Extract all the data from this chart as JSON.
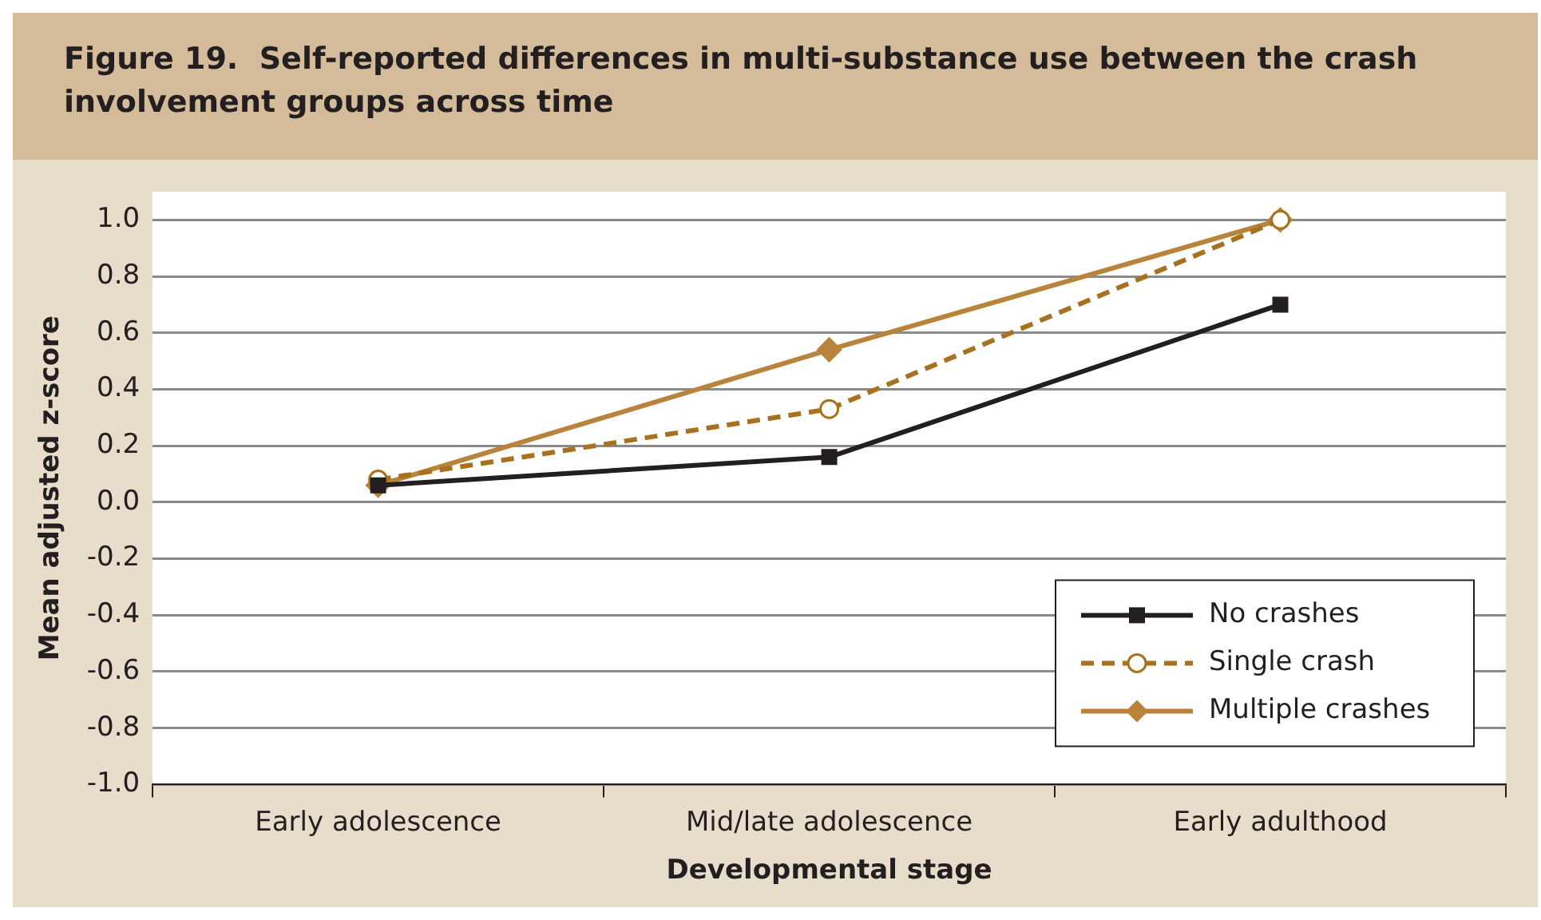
{
  "chart_data": {
    "type": "line",
    "title": "Figure 19.  Self-reported differences in multi-substance use between the crash involvement groups across time",
    "xlabel": "Developmental stage",
    "ylabel": "Mean adjusted z-score",
    "categories": [
      "Early adolescence",
      "Mid/late adolescence",
      "Early adulthood"
    ],
    "series": [
      {
        "name": "No crashes",
        "color": "#231f20",
        "values": [
          0.06,
          0.16,
          0.7
        ],
        "marker": "square",
        "line_style": "solid"
      },
      {
        "name": "Single crash",
        "color": "#a8711f",
        "values": [
          0.08,
          0.33,
          1.0
        ],
        "marker": "circle",
        "line_style": "dashed"
      },
      {
        "name": "Multiple crashes",
        "color": "#b8843c",
        "values": [
          0.06,
          0.54,
          1.0
        ],
        "marker": "diamond",
        "line_style": "solid"
      }
    ],
    "ylim": [
      -1,
      1.1
    ],
    "yticks": [
      {
        "value": -1,
        "label": "-1.0"
      },
      {
        "value": -0.8,
        "label": "-0.8"
      },
      {
        "value": -0.6,
        "label": "-0.6"
      },
      {
        "value": -0.4,
        "label": "-0.4"
      },
      {
        "value": -0.2,
        "label": "-0.2"
      },
      {
        "value": 0,
        "label": "0.0"
      },
      {
        "value": 0.2,
        "label": "0.2"
      },
      {
        "value": 0.4,
        "label": "0.4"
      },
      {
        "value": 0.6,
        "label": "0.6"
      },
      {
        "value": 0.8,
        "label": "0.8"
      },
      {
        "value": 1,
        "label": "1.0"
      }
    ],
    "grid": "y",
    "legend": "bottom right"
  }
}
